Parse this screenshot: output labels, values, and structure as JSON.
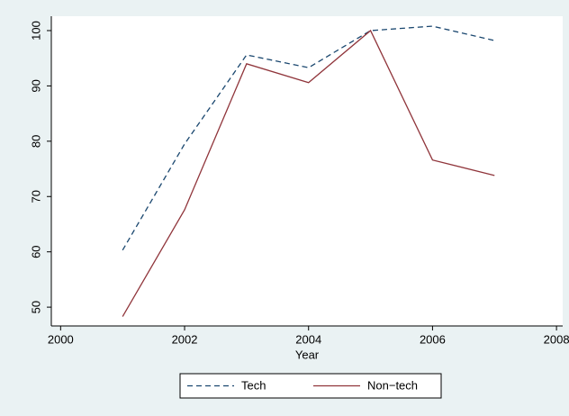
{
  "chart_data": {
    "type": "line",
    "xlabel": "Year",
    "x": [
      2001,
      2002,
      2003,
      2004,
      2005,
      2006,
      2007
    ],
    "series": [
      {
        "name": "Tech",
        "color": "#1a476f",
        "dash": true,
        "values": [
          60.3,
          79.5,
          95.6,
          93.3,
          100,
          100.8,
          98.2
        ]
      },
      {
        "name": "Non−tech",
        "color": "#90353b",
        "dash": false,
        "values": [
          48.3,
          67.6,
          94,
          90.6,
          100,
          76.6,
          73.8
        ]
      }
    ],
    "xlim": [
      1999.85,
      2008.1
    ],
    "xticks": [
      2000,
      2002,
      2004,
      2006,
      2008
    ],
    "ylim": [
      46.6,
      102.6
    ],
    "yticks": [
      50,
      60,
      70,
      80,
      90,
      100
    ],
    "legend": "bottom",
    "grid": false
  }
}
